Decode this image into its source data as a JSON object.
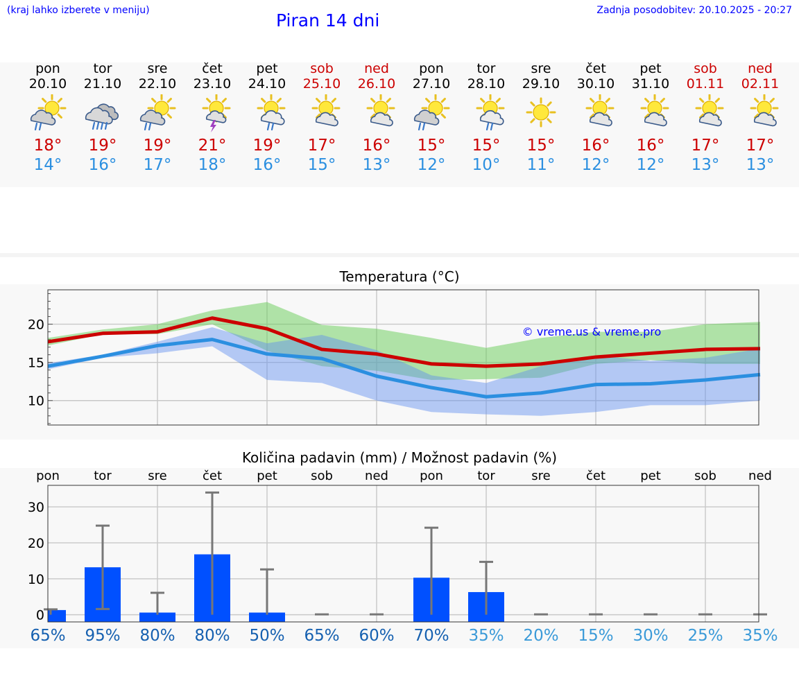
{
  "header": {
    "note": "(kraj lahko izberete v meniju)",
    "title": "Piran 14 dni",
    "updated": "Zadnja posodobitev: 20.10.2025 - 20:27"
  },
  "colors": {
    "max": "#cc0000",
    "min": "#2b8fe0",
    "maxBand": "#66cc55",
    "minBand": "#5f8ff0",
    "bar": "#0050ff",
    "link": "#0000ff"
  },
  "days": [
    {
      "name": "pon",
      "date": "20.10",
      "icon": "sun-rain-icon",
      "max": "18°",
      "min": "14°",
      "weekend": false
    },
    {
      "name": "tor",
      "date": "21.10",
      "icon": "heavy-rain-icon",
      "max": "19°",
      "min": "16°",
      "weekend": false
    },
    {
      "name": "sre",
      "date": "22.10",
      "icon": "sun-rain-icon",
      "max": "19°",
      "min": "17°",
      "weekend": false
    },
    {
      "name": "čet",
      "date": "23.10",
      "icon": "sun-storm-icon",
      "max": "21°",
      "min": "18°",
      "weekend": false
    },
    {
      "name": "pet",
      "date": "24.10",
      "icon": "sun-cloud-rain-icon",
      "max": "19°",
      "min": "16°",
      "weekend": false
    },
    {
      "name": "sob",
      "date": "25.10",
      "icon": "sun-cloud-icon",
      "max": "17°",
      "min": "15°",
      "weekend": true
    },
    {
      "name": "ned",
      "date": "26.10",
      "icon": "sun-cloud-icon",
      "max": "16°",
      "min": "13°",
      "weekend": true
    },
    {
      "name": "pon",
      "date": "27.10",
      "icon": "sun-rain-icon",
      "max": "15°",
      "min": "12°",
      "weekend": false
    },
    {
      "name": "tor",
      "date": "28.10",
      "icon": "sun-cloud-rain-icon",
      "max": "15°",
      "min": "10°",
      "weekend": false
    },
    {
      "name": "sre",
      "date": "29.10",
      "icon": "sun-icon",
      "max": "15°",
      "min": "11°",
      "weekend": false
    },
    {
      "name": "čet",
      "date": "30.10",
      "icon": "sun-cloud-icon",
      "max": "16°",
      "min": "12°",
      "weekend": false
    },
    {
      "name": "pet",
      "date": "31.10",
      "icon": "sun-cloud-icon",
      "max": "16°",
      "min": "12°",
      "weekend": false
    },
    {
      "name": "sob",
      "date": "01.11",
      "icon": "sun-cloud-icon",
      "max": "17°",
      "min": "13°",
      "weekend": true
    },
    {
      "name": "ned",
      "date": "02.11",
      "icon": "sun-cloud-icon",
      "max": "17°",
      "min": "13°",
      "weekend": true
    }
  ],
  "chart_data": [
    {
      "type": "line",
      "title": "Temperatura (°C)",
      "watermark": "© vreme.us & vreme.pro",
      "ylim": [
        6.8,
        24.5
      ],
      "yticks": [
        10,
        15,
        20
      ],
      "grid": true,
      "series": [
        {
          "values": [
            17.7,
            18.8,
            19.0,
            20.8,
            19.4,
            16.7,
            16.1,
            14.8,
            14.5,
            14.8,
            15.7,
            16.2,
            16.7,
            16.8
          ]
        },
        {
          "values": [
            14.5,
            15.8,
            17.2,
            18.0,
            16.1,
            15.5,
            13.2,
            11.7,
            10.5,
            11.0,
            12.1,
            12.2,
            12.7,
            13.4
          ]
        }
      ],
      "bands": [
        {
          "low": [
            17.2,
            18.7,
            18.7,
            20.0,
            16.5,
            14.5,
            13.9,
            12.7,
            12.8,
            13.0,
            14.8,
            15.3,
            14.8,
            14.8
          ],
          "high": [
            18.2,
            19.3,
            20.0,
            21.8,
            22.9,
            19.9,
            19.4,
            18.2,
            16.9,
            18.2,
            19.0,
            19.0,
            20.0,
            20.3
          ]
        },
        {
          "low": [
            14.1,
            15.6,
            16.2,
            17.1,
            12.7,
            12.3,
            10.0,
            8.5,
            8.2,
            8.0,
            8.5,
            9.4,
            9.4,
            10.0
          ],
          "high": [
            14.9,
            16.0,
            17.7,
            19.6,
            17.5,
            18.6,
            16.6,
            13.3,
            12.3,
            14.5,
            15.9,
            15.2,
            15.6,
            16.8
          ]
        }
      ]
    },
    {
      "type": "bar",
      "title": "Količina padavin (mm) / Možnost padavin (%)",
      "categories": [
        "pon",
        "tor",
        "sre",
        "čet",
        "pet",
        "sob",
        "ned",
        "pon",
        "tor",
        "sre",
        "čet",
        "pet",
        "sob",
        "ned"
      ],
      "values": [
        1.3,
        13.2,
        0.6,
        16.8,
        0.6,
        0,
        0,
        10.3,
        6.3,
        0,
        0,
        0,
        0,
        0
      ],
      "error_low": [
        0,
        1.6,
        0,
        0,
        0,
        0,
        0,
        0,
        0,
        0,
        0,
        0,
        0,
        0
      ],
      "error_high": [
        1.5,
        24.8,
        6.1,
        34.0,
        12.6,
        0.1,
        0.1,
        24.2,
        14.7,
        0.1,
        0.1,
        0.1,
        0.1,
        0.1
      ],
      "probabilities": [
        "65%",
        "95%",
        "80%",
        "80%",
        "50%",
        "65%",
        "60%",
        "70%",
        "35%",
        "20%",
        "15%",
        "30%",
        "25%",
        "35%"
      ],
      "probability_values": [
        65,
        95,
        80,
        80,
        50,
        65,
        60,
        70,
        35,
        20,
        15,
        30,
        25,
        35
      ],
      "ylim": [
        -2,
        36
      ],
      "yticks": [
        0,
        10,
        20,
        30
      ],
      "grid": true
    }
  ]
}
